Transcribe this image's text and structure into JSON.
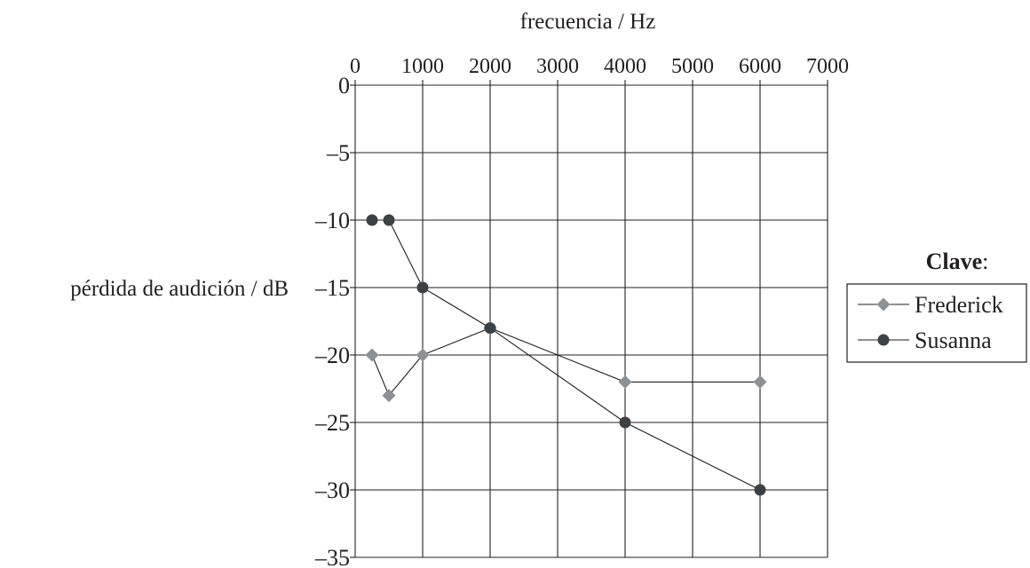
{
  "chart_data": {
    "type": "line",
    "xlabel": "frecuencia / Hz",
    "ylabel": "pérdida de audición / dB",
    "xlim": [
      0,
      7000
    ],
    "ylim": [
      -35,
      0
    ],
    "xticks": [
      0,
      1000,
      2000,
      3000,
      4000,
      5000,
      6000,
      7000
    ],
    "yticks": [
      0,
      -5,
      -10,
      -15,
      -20,
      -25,
      -30,
      -35
    ],
    "ytick_labels": [
      "0",
      "–5",
      "–10",
      "–15",
      "–20",
      "–25",
      "–30",
      "–35"
    ],
    "grid": true,
    "x_axis_position": "top",
    "legend": {
      "title_bold": "Clave",
      "title_suffix": ":",
      "position": "right"
    },
    "series": [
      {
        "name": "Frederick",
        "marker": "diamond",
        "marker_color": "#8c9196",
        "x": [
          250,
          500,
          1000,
          2000,
          4000,
          6000
        ],
        "y": [
          -20,
          -23,
          -20,
          -18,
          -22,
          -22
        ]
      },
      {
        "name": "Susanna",
        "marker": "circle",
        "marker_color": "#3b4245",
        "x": [
          250,
          500,
          1000,
          2000,
          4000,
          6000
        ],
        "y": [
          -10,
          -10,
          -15,
          -18,
          -25,
          -30
        ]
      }
    ]
  }
}
